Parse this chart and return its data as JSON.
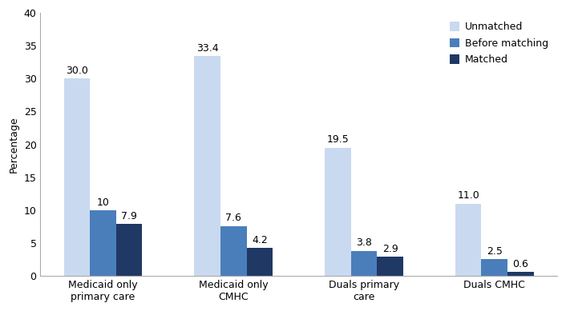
{
  "categories": [
    "Medicaid only\nprimary care",
    "Medicaid only\nCMHC",
    "Duals primary\ncare",
    "Duals CMHC"
  ],
  "series": {
    "Unmatched": [
      30.0,
      33.4,
      19.5,
      11.0
    ],
    "Before matching": [
      10.0,
      7.6,
      3.8,
      2.5
    ],
    "Matched": [
      7.9,
      4.2,
      2.9,
      0.6
    ]
  },
  "colors": {
    "Unmatched": "#c9daf0",
    "Before matching": "#4a7ebb",
    "Matched": "#1f3864"
  },
  "ylabel": "Percentage",
  "ylim": [
    0,
    40
  ],
  "yticks": [
    0,
    5,
    10,
    15,
    20,
    25,
    30,
    35,
    40
  ],
  "bar_width": 0.2,
  "legend_labels": [
    "Unmatched",
    "Before matching",
    "Matched"
  ],
  "value_labels": {
    "Unmatched": [
      "30.0",
      "33.4",
      "19.5",
      "11.0"
    ],
    "Before matching": [
      "10",
      "7.6",
      "3.8",
      "2.5"
    ],
    "Matched": [
      "7.9",
      "4.2",
      "2.9",
      "0.6"
    ]
  },
  "background_color": "#ffffff",
  "fontsize": 9,
  "label_fontsize": 9
}
